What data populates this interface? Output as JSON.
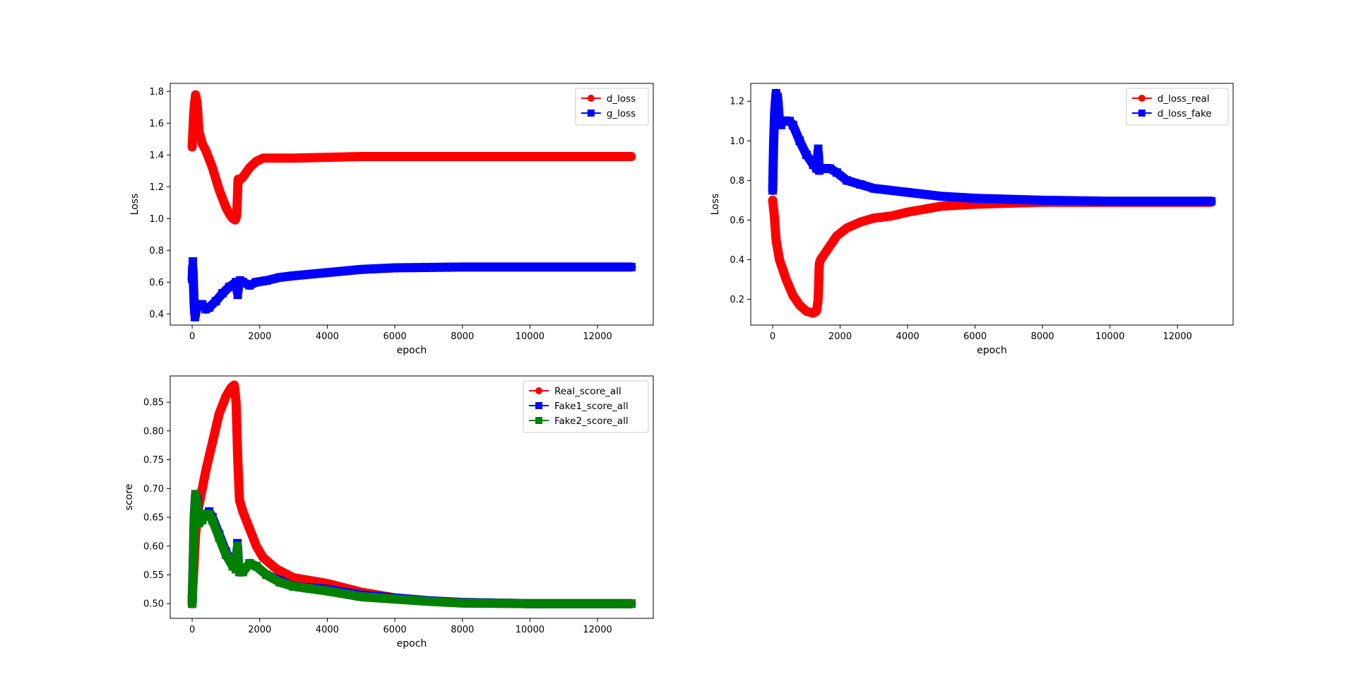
{
  "figure": {
    "background": "#ffffff"
  },
  "chart_data": [
    {
      "type": "line",
      "title": "",
      "xlabel": "epoch",
      "ylabel": "Loss",
      "xlim": [
        -650,
        13650
      ],
      "ylim": [
        0.33,
        1.85
      ],
      "xticks": [
        0,
        2000,
        4000,
        6000,
        8000,
        10000,
        12000
      ],
      "xtick_labels": [
        "0",
        "2000",
        "4000",
        "6000",
        "8000",
        "10000",
        "12000"
      ],
      "yticks": [
        0.4,
        0.6,
        0.8,
        1.0,
        1.2,
        1.4,
        1.6,
        1.8
      ],
      "ytick_labels": [
        "0.4",
        "0.6",
        "0.8",
        "1.0",
        "1.2",
        "1.4",
        "1.6",
        "1.8"
      ],
      "grid": false,
      "legend_position": "upper right",
      "series": [
        {
          "name": "d_loss",
          "color": "#ff0000",
          "marker": "circle",
          "x": [
            0,
            50,
            100,
            150,
            200,
            300,
            400,
            600,
            800,
            1000,
            1100,
            1200,
            1280,
            1320,
            1360,
            1400,
            1500,
            1700,
            1900,
            2100,
            2500,
            3000,
            4000,
            5000,
            6000,
            8000,
            10000,
            12000,
            13000
          ],
          "y": [
            1.45,
            1.68,
            1.78,
            1.72,
            1.55,
            1.47,
            1.43,
            1.32,
            1.18,
            1.07,
            1.03,
            1.0,
            0.99,
            1.02,
            1.25,
            1.24,
            1.26,
            1.32,
            1.36,
            1.38,
            1.38,
            1.38,
            1.385,
            1.39,
            1.39,
            1.39,
            1.39,
            1.39,
            1.39
          ]
        },
        {
          "name": "g_loss",
          "color": "#0000ff",
          "marker": "square",
          "x": [
            0,
            20,
            50,
            80,
            100,
            150,
            200,
            250,
            300,
            400,
            500,
            700,
            900,
            1100,
            1300,
            1350,
            1380,
            1420,
            1500,
            1700,
            1900,
            2200,
            2600,
            3000,
            4000,
            5000,
            6000,
            8000,
            10000,
            12000,
            13000
          ],
          "y": [
            0.62,
            0.73,
            0.5,
            0.38,
            0.4,
            0.45,
            0.46,
            0.45,
            0.46,
            0.43,
            0.44,
            0.48,
            0.53,
            0.57,
            0.6,
            0.52,
            0.6,
            0.61,
            0.6,
            0.58,
            0.6,
            0.61,
            0.63,
            0.64,
            0.66,
            0.68,
            0.69,
            0.695,
            0.695,
            0.695,
            0.695
          ]
        }
      ]
    },
    {
      "type": "line",
      "title": "",
      "xlabel": "epoch",
      "ylabel": "Loss",
      "xlim": [
        -650,
        13650
      ],
      "ylim": [
        0.07,
        1.29
      ],
      "xticks": [
        0,
        2000,
        4000,
        6000,
        8000,
        10000,
        12000
      ],
      "xtick_labels": [
        "0",
        "2000",
        "4000",
        "6000",
        "8000",
        "10000",
        "12000"
      ],
      "yticks": [
        0.2,
        0.4,
        0.6,
        0.8,
        1.0,
        1.2
      ],
      "ytick_labels": [
        "0.2",
        "0.4",
        "0.6",
        "0.8",
        "1.0",
        "1.2"
      ],
      "grid": false,
      "legend_position": "upper right",
      "series": [
        {
          "name": "d_loss_real",
          "color": "#ff0000",
          "marker": "circle",
          "x": [
            0,
            50,
            100,
            200,
            300,
            400,
            600,
            800,
            1000,
            1200,
            1300,
            1350,
            1380,
            1420,
            1500,
            1700,
            1900,
            2200,
            2600,
            3000,
            3500,
            4000,
            5000,
            6000,
            8000,
            10000,
            12000,
            13000
          ],
          "y": [
            0.7,
            0.62,
            0.5,
            0.4,
            0.35,
            0.3,
            0.22,
            0.17,
            0.14,
            0.13,
            0.14,
            0.2,
            0.38,
            0.4,
            0.42,
            0.47,
            0.52,
            0.56,
            0.59,
            0.61,
            0.62,
            0.64,
            0.67,
            0.68,
            0.69,
            0.69,
            0.69,
            0.69
          ]
        },
        {
          "name": "d_loss_fake",
          "color": "#0000ff",
          "marker": "square",
          "x": [
            0,
            30,
            60,
            100,
            150,
            200,
            250,
            300,
            400,
            500,
            600,
            800,
            1000,
            1200,
            1300,
            1350,
            1380,
            1420,
            1500,
            1700,
            1900,
            2200,
            2600,
            3000,
            4000,
            5000,
            6000,
            8000,
            10000,
            12000,
            13000
          ],
          "y": [
            0.75,
            1.0,
            1.15,
            1.24,
            1.22,
            1.1,
            1.08,
            1.1,
            1.1,
            1.1,
            1.08,
            1.0,
            0.93,
            0.88,
            0.86,
            0.96,
            0.85,
            0.86,
            0.86,
            0.86,
            0.84,
            0.8,
            0.78,
            0.76,
            0.74,
            0.72,
            0.71,
            0.7,
            0.695,
            0.695,
            0.695
          ]
        }
      ]
    },
    {
      "type": "line",
      "title": "",
      "xlabel": "epoch",
      "ylabel": "score",
      "xlim": [
        -650,
        13650
      ],
      "ylim": [
        0.4745,
        0.8955
      ],
      "xticks": [
        0,
        2000,
        4000,
        6000,
        8000,
        10000,
        12000
      ],
      "xtick_labels": [
        "0",
        "2000",
        "4000",
        "6000",
        "8000",
        "10000",
        "12000"
      ],
      "yticks": [
        0.5,
        0.55,
        0.6,
        0.65,
        0.7,
        0.75,
        0.8,
        0.85
      ],
      "ytick_labels": [
        "0.50",
        "0.55",
        "0.60",
        "0.65",
        "0.70",
        "0.75",
        "0.80",
        "0.85"
      ],
      "grid": false,
      "legend_position": "upper right",
      "series": [
        {
          "name": "Real_score_all",
          "color": "#ff0000",
          "marker": "circle",
          "x": [
            0,
            50,
            100,
            200,
            300,
            400,
            600,
            800,
            1000,
            1150,
            1250,
            1300,
            1350,
            1400,
            1500,
            1700,
            1900,
            2100,
            2500,
            3000,
            3500,
            4000,
            5000,
            6000,
            7000,
            8000,
            10000,
            12000,
            13000
          ],
          "y": [
            0.51,
            0.56,
            0.62,
            0.67,
            0.7,
            0.73,
            0.78,
            0.83,
            0.86,
            0.875,
            0.88,
            0.85,
            0.75,
            0.68,
            0.66,
            0.63,
            0.6,
            0.58,
            0.56,
            0.545,
            0.54,
            0.535,
            0.52,
            0.51,
            0.505,
            0.502,
            0.5,
            0.5,
            0.5
          ]
        },
        {
          "name": "Fake1_score_all",
          "color": "#0000ff",
          "marker": "square",
          "x": [
            0,
            30,
            60,
            100,
            150,
            200,
            300,
            400,
            500,
            600,
            800,
            1000,
            1200,
            1300,
            1340,
            1370,
            1400,
            1500,
            1700,
            1900,
            2200,
            2600,
            3000,
            4000,
            5000,
            6000,
            7000,
            8000,
            10000,
            12000,
            13000
          ],
          "y": [
            0.5,
            0.57,
            0.65,
            0.69,
            0.68,
            0.64,
            0.65,
            0.655,
            0.66,
            0.65,
            0.62,
            0.59,
            0.57,
            0.56,
            0.605,
            0.57,
            0.555,
            0.555,
            0.57,
            0.565,
            0.55,
            0.54,
            0.53,
            0.525,
            0.515,
            0.51,
            0.505,
            0.502,
            0.5,
            0.5,
            0.5
          ]
        },
        {
          "name": "Fake2_score_all",
          "color": "#008000",
          "marker": "square",
          "x": [
            0,
            30,
            60,
            100,
            150,
            200,
            300,
            400,
            500,
            600,
            800,
            1000,
            1200,
            1300,
            1340,
            1370,
            1400,
            1500,
            1700,
            1900,
            2200,
            2600,
            3000,
            4000,
            5000,
            6000,
            7000,
            8000,
            10000,
            12000,
            13000
          ],
          "y": [
            0.5,
            0.56,
            0.64,
            0.69,
            0.67,
            0.64,
            0.645,
            0.655,
            0.655,
            0.645,
            0.615,
            0.585,
            0.565,
            0.56,
            0.6,
            0.565,
            0.555,
            0.555,
            0.57,
            0.565,
            0.55,
            0.537,
            0.53,
            0.522,
            0.512,
            0.508,
            0.504,
            0.501,
            0.5,
            0.5,
            0.5
          ]
        }
      ]
    }
  ]
}
